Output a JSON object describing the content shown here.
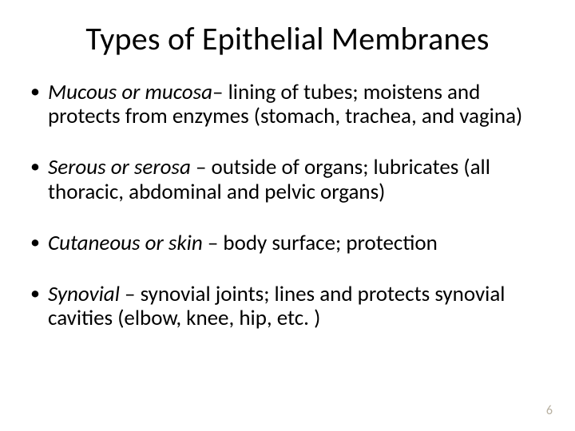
{
  "slide": {
    "title": "Types of Epithelial Membranes",
    "page_number": "6",
    "background_color": "#ffffff",
    "text_color": "#000000",
    "page_number_color": "#b9b2a3",
    "title_fontsize_pt": 40,
    "body_fontsize_pt": 27,
    "font_family": "Calibri",
    "bullets": [
      {
        "term": "Mucous  or mucosa",
        "dash": "– ",
        "rest": "lining of tubes; moistens and protects from enzymes (stomach, trachea, and vagina)"
      },
      {
        "term": "Serous or serosa ",
        "dash": "– ",
        "rest": "outside of organs; lubricates (all thoracic, abdominal and pelvic organs)"
      },
      {
        "term": "Cutaneous or skin ",
        "dash": "– ",
        "rest": "body surface; protection"
      },
      {
        "term": "Synovial ",
        "dash": "– ",
        "rest": "synovial joints; lines and protects synovial cavities (elbow, knee, hip, etc. )"
      }
    ]
  }
}
